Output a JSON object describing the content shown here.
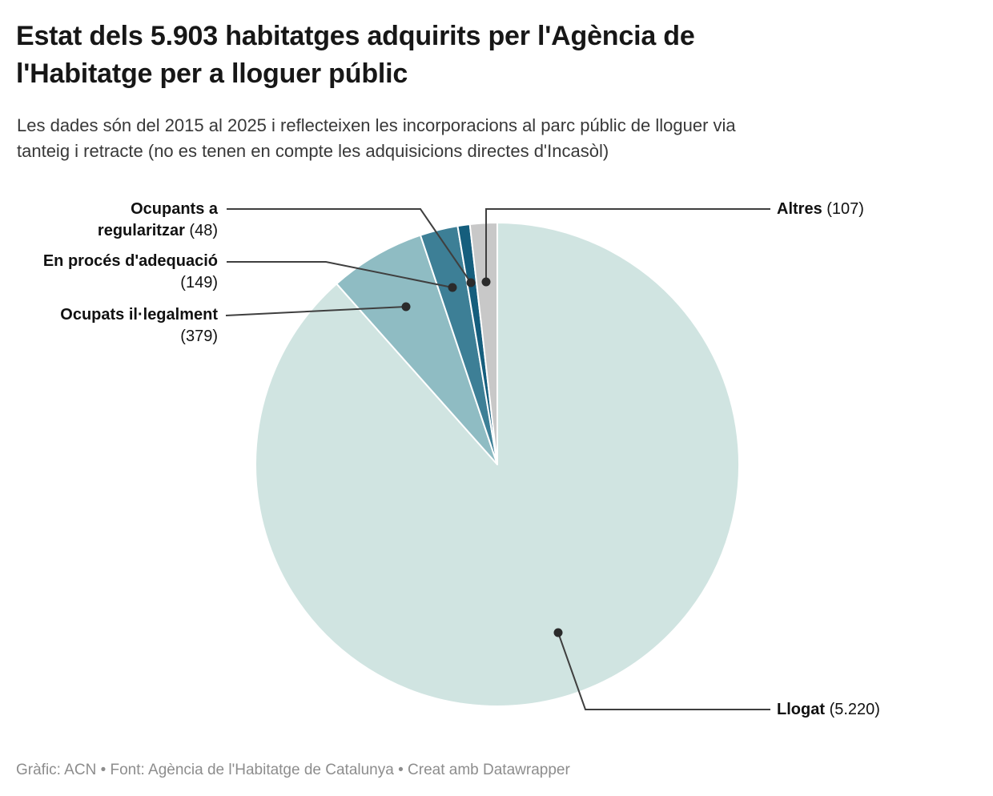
{
  "header": {
    "title": "Estat dels 5.903 habitatges adquirits per l'Agència de\nl'Habitatge per a lloguer públic",
    "subtitle": "Les dades són del 2015 al 2025 i reflecteixen les incorporacions al parc públic de lloguer via\ntanteig i retracte (no es tenen en compte les adquisicions directes d'Incasòl)"
  },
  "chart_data": {
    "type": "pie",
    "title": "Estat dels 5.903 habitatges adquirits per l'Agència de l'Habitatge per a lloguer públic",
    "total": 5903,
    "start_angle_deg": -90,
    "direction": "clockwise",
    "legend_position": "callout-labels",
    "segments": [
      {
        "id": "llogat",
        "label": "Llogat",
        "value": 5220,
        "display": "Llogat (5.220)",
        "color": "#d0e4e1"
      },
      {
        "id": "ocupats-illegalment",
        "label": "Ocupats il·legalment",
        "value": 379,
        "display": "Ocupats il·legalment (379)",
        "color": "#8fbcc3"
      },
      {
        "id": "en-proces-adequacio",
        "label": "En procés d'adequació",
        "value": 149,
        "display": "En procés d'adequació (149)",
        "color": "#3d7f96"
      },
      {
        "id": "ocupants-regularitzar",
        "label": "Ocupants a regularitzar",
        "value": 48,
        "display": "Ocupants a regularitzar (48)",
        "color": "#155e7d"
      },
      {
        "id": "altres",
        "label": "Altres",
        "value": 107,
        "display": "Altres (107)",
        "color": "#c8c8c8"
      }
    ]
  },
  "labels": {
    "ocupants": {
      "line1": "Ocupants a",
      "line2": "regularitzar",
      "value": "(48)"
    },
    "proces": {
      "line1": "En procés d'adequació",
      "value": "(149)"
    },
    "ocupats": {
      "line1": "Ocupats il·legalment",
      "value": "(379)"
    },
    "altres": {
      "name": "Altres",
      "value": "(107)"
    },
    "llogat": {
      "name": "Llogat",
      "value": "(5.220)"
    }
  },
  "footer": {
    "credit": "Gràfic: ACN • Font: Agència de l'Habitatge de Catalunya • Creat amb Datawrapper"
  },
  "style": {
    "leader_line_color": "#3f3f3f",
    "leader_dot_color": "#2b2b2b",
    "slice_stroke_color": "#ffffff"
  }
}
